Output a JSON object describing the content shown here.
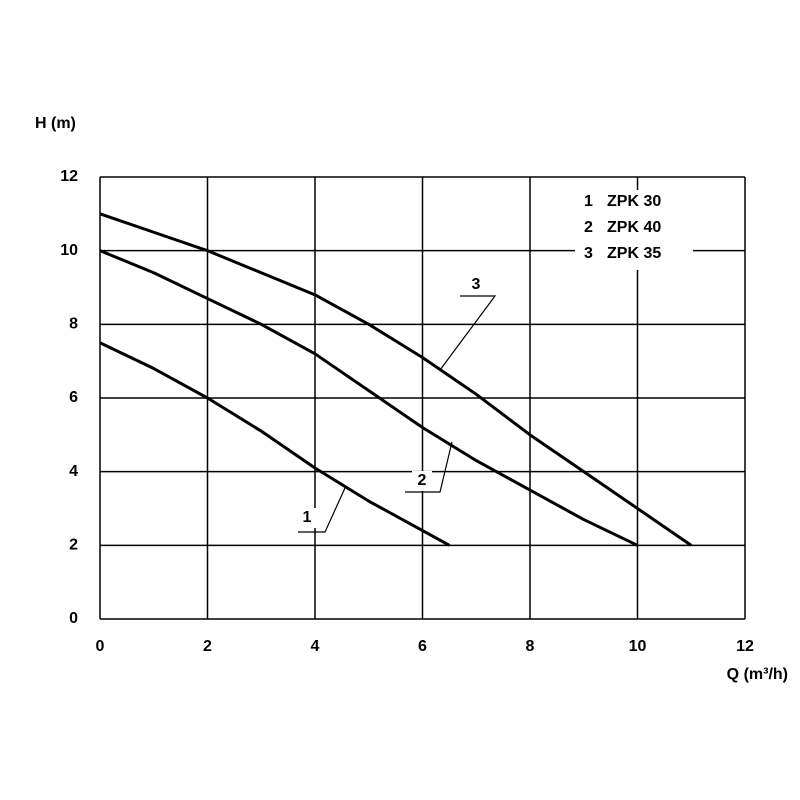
{
  "chart_data": {
    "type": "line",
    "y_label": "H (m)",
    "x_label": "Q (m³/h)",
    "xlim": [
      0,
      12
    ],
    "ylim": [
      0,
      12
    ],
    "xticks": [
      0,
      2,
      4,
      6,
      8,
      10,
      12
    ],
    "yticks": [
      0,
      2,
      4,
      6,
      8,
      10,
      12
    ],
    "grid": true,
    "legend": "upper right",
    "series": [
      {
        "label": "1",
        "name": "ZPK 30",
        "color": "#000000",
        "x": [
          0,
          1,
          2,
          3,
          4,
          5,
          6,
          6.5
        ],
        "values": [
          7.5,
          6.8,
          6.0,
          5.1,
          4.1,
          3.2,
          2.4,
          2.0
        ]
      },
      {
        "label": "2",
        "name": "ZPK 40",
        "color": "#000000",
        "x": [
          0,
          1,
          2,
          3,
          4,
          5,
          6,
          7,
          8,
          9,
          10
        ],
        "values": [
          10,
          9.4,
          8.7,
          8.0,
          7.2,
          6.2,
          5.2,
          4.3,
          3.5,
          2.7,
          2.0
        ]
      },
      {
        "label": "3",
        "name": "ZPK 35",
        "color": "#000000",
        "x": [
          0,
          1,
          2,
          3,
          4,
          5,
          6,
          7,
          8,
          9,
          10,
          11
        ],
        "values": [
          11,
          10.5,
          10,
          9.4,
          8.8,
          8.0,
          7.1,
          6.1,
          5.0,
          4.0,
          3.0,
          2.0
        ]
      }
    ]
  }
}
